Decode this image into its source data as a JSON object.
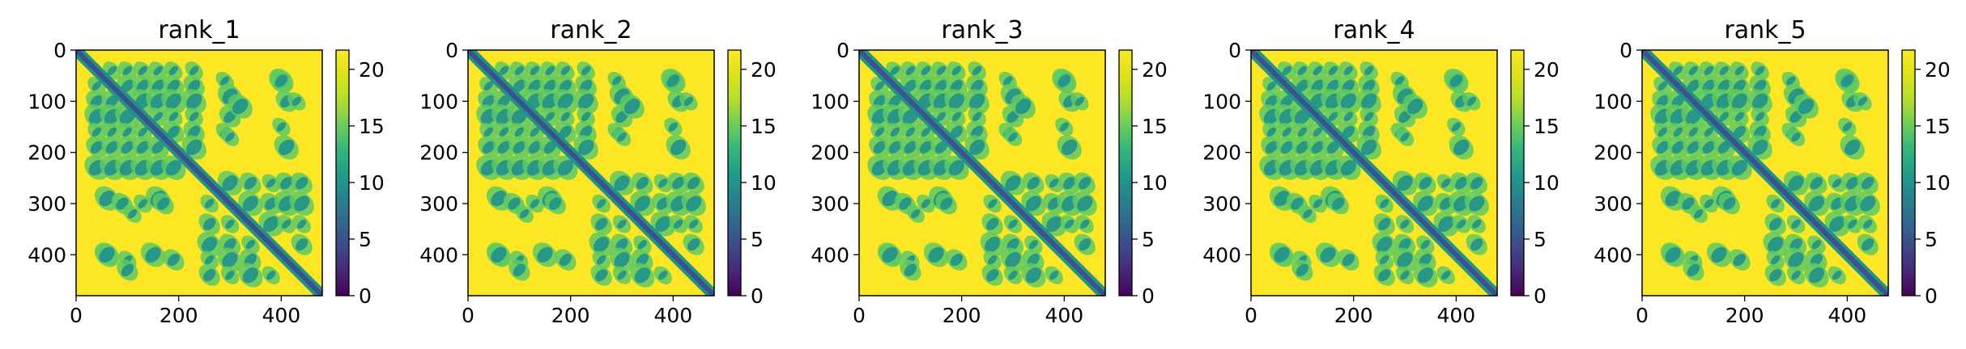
{
  "chart_data": [
    {
      "type": "heatmap",
      "title": "rank_1",
      "xlabel": "",
      "ylabel": "",
      "xlim": [
        0,
        480
      ],
      "ylim": [
        480,
        0
      ],
      "x_ticks": [
        0,
        200,
        400
      ],
      "y_ticks": [
        0,
        100,
        200,
        300,
        400
      ],
      "colorbar": {
        "range": [
          0,
          21.7
        ],
        "ticks": [
          0,
          5,
          10,
          15,
          20
        ],
        "colormap": "viridis"
      },
      "description_values": {
        "diagonal": 0,
        "off_contact_background": 21.7
      }
    },
    {
      "type": "heatmap",
      "title": "rank_2",
      "xlabel": "",
      "ylabel": "",
      "xlim": [
        0,
        480
      ],
      "ylim": [
        480,
        0
      ],
      "x_ticks": [
        0,
        200,
        400
      ],
      "y_ticks": [
        0,
        100,
        200,
        300,
        400
      ],
      "colorbar": {
        "range": [
          0,
          21.7
        ],
        "ticks": [
          0,
          5,
          10,
          15,
          20
        ],
        "colormap": "viridis"
      },
      "description_values": {
        "diagonal": 0,
        "off_contact_background": 21.7
      }
    },
    {
      "type": "heatmap",
      "title": "rank_3",
      "xlabel": "",
      "ylabel": "",
      "xlim": [
        0,
        480
      ],
      "ylim": [
        480,
        0
      ],
      "x_ticks": [
        0,
        200,
        400
      ],
      "y_ticks": [
        0,
        100,
        200,
        300,
        400
      ],
      "colorbar": {
        "range": [
          0,
          21.7
        ],
        "ticks": [
          0,
          5,
          10,
          15,
          20
        ],
        "colormap": "viridis"
      },
      "description_values": {
        "diagonal": 0,
        "off_contact_background": 21.7
      }
    },
    {
      "type": "heatmap",
      "title": "rank_4",
      "xlabel": "",
      "ylabel": "",
      "xlim": [
        0,
        480
      ],
      "ylim": [
        480,
        0
      ],
      "x_ticks": [
        0,
        200,
        400
      ],
      "y_ticks": [
        0,
        100,
        200,
        300,
        400
      ],
      "colorbar": {
        "range": [
          0,
          21.7
        ],
        "ticks": [
          0,
          5,
          10,
          15,
          20
        ],
        "colormap": "viridis"
      },
      "description_values": {
        "diagonal": 0,
        "off_contact_background": 21.7
      }
    },
    {
      "type": "heatmap",
      "title": "rank_5",
      "xlabel": "",
      "ylabel": "",
      "xlim": [
        0,
        480
      ],
      "ylim": [
        480,
        0
      ],
      "x_ticks": [
        0,
        200,
        400
      ],
      "y_ticks": [
        0,
        100,
        200,
        300,
        400
      ],
      "colorbar": {
        "range": [
          0,
          21.7
        ],
        "ticks": [
          0,
          5,
          10,
          15,
          20
        ],
        "colormap": "viridis"
      },
      "description_values": {
        "diagonal": 0,
        "off_contact_background": 21.7
      }
    }
  ],
  "colors": {
    "viridis_low": "#440154",
    "viridis_mid_low": "#3b528b",
    "viridis_mid": "#21918c",
    "viridis_mid_high": "#5ec962",
    "viridis_high": "#fde725",
    "axis": "#000000",
    "background": "#ffffff"
  }
}
